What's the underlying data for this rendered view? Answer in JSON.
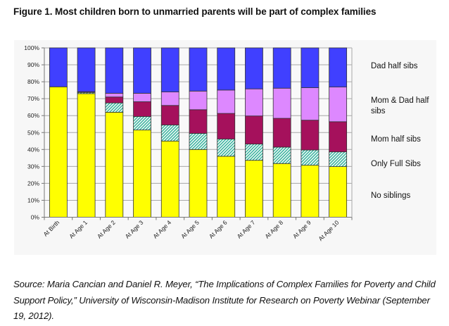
{
  "figure": {
    "title": "Figure 1. Most children born to unmarried parents will be part of complex families",
    "source": "Source: Maria Cancian and Daniel R. Meyer, “The Implications of Complex Families for Poverty and Child Support Policy,” University of Wisconsin-Madison Institute for Research on Poverty Webinar (September 19, 2012)."
  },
  "chart_data": {
    "type": "bar",
    "stacked": true,
    "title": "",
    "xlabel": "",
    "ylabel": "",
    "ylim": [
      0,
      100
    ],
    "y_ticks": [
      "0%",
      "10%",
      "20%",
      "30%",
      "40%",
      "50%",
      "60%",
      "70%",
      "80%",
      "90%",
      "100%"
    ],
    "grid": true,
    "legend_position": "right",
    "categories": [
      "At Birth",
      "At Age 1",
      "At Age 2",
      "At Age 3",
      "At Age 4",
      "At Age 5",
      "At Age 6",
      "At Age 7",
      "At Age 8",
      "At Age 9",
      "At Age 10"
    ],
    "series": [
      {
        "name": "No siblings",
        "color": "#ffff00",
        "pattern": "solid",
        "values": [
          77,
          73,
          62,
          51.5,
          45,
          40,
          36,
          33.6,
          31.7,
          30.7,
          29.9
        ]
      },
      {
        "name": "Only Full Sibs",
        "color": "#3bb39e",
        "pattern": "hatch",
        "values": [
          0,
          0.7,
          5.5,
          8,
          9.5,
          9.5,
          10.2,
          9.6,
          9.7,
          9,
          8.7
        ]
      },
      {
        "name": "Mom half sibs",
        "color": "#a5115c",
        "pattern": "solid",
        "values": [
          0,
          0.4,
          3.5,
          8.7,
          11.5,
          14,
          15.1,
          16.6,
          17,
          17.6,
          17.8
        ]
      },
      {
        "name": "Mom & Dad half sibs",
        "color": "#dd88ff",
        "pattern": "solid",
        "values": [
          0,
          0,
          2.2,
          5,
          8,
          11,
          13.8,
          16,
          17.8,
          19.2,
          20.5
        ]
      },
      {
        "name": "Dad half sibs",
        "color": "#4040ff",
        "pattern": "solid",
        "values": [
          23,
          25.9,
          26.8,
          26.8,
          26,
          25.5,
          24.9,
          24.2,
          23.8,
          23.5,
          23.1
        ]
      }
    ],
    "legend": [
      {
        "lines": [
          "Dad half sibs"
        ]
      },
      {
        "lines": [
          "Mom & Dad half",
          "sibs"
        ]
      },
      {
        "lines": [
          "Mom half sibs"
        ]
      },
      {
        "lines": [
          "Only Full Sibs"
        ]
      },
      {
        "lines": [
          "No siblings"
        ]
      }
    ]
  }
}
